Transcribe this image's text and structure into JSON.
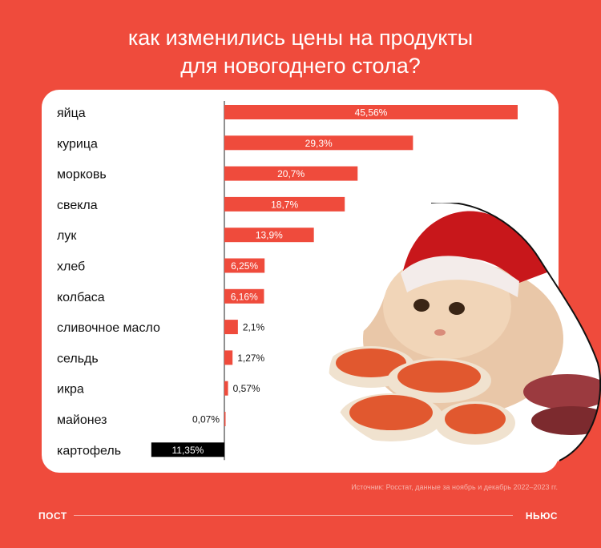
{
  "title": [
    "как изменились цены на продукты",
    "для новогоднего стола?"
  ],
  "source": "Источник: Росстат, данные за ноябрь и декабрь 2022–2023 гг.",
  "brand_left": "ПОСТ",
  "brand_right": "НЬЮС",
  "colors": {
    "background": "#ef4b3c",
    "bar_positive": "#ef4b3c",
    "bar_negative": "#000000",
    "card": "#ffffff"
  },
  "photo_icon": "cat-in-santa-hat-with-caviar-sandwiches",
  "chart_data": {
    "type": "bar",
    "orientation": "horizontal",
    "categories": [
      "яйца",
      "курица",
      "морковь",
      "свекла",
      "лук",
      "хлеб",
      "колбаса",
      "сливочное масло",
      "сельдь",
      "икра",
      "майонез",
      "картофель"
    ],
    "values": [
      45.56,
      29.3,
      20.7,
      18.7,
      13.9,
      6.25,
      6.16,
      2.1,
      1.27,
      0.57,
      0.07,
      -11.35
    ],
    "labels": [
      "45,56%",
      "29,3%",
      "20,7%",
      "18,7%",
      "13,9%",
      "6,25%",
      "6,16%",
      "2,1%",
      "1,27%",
      "0,57%",
      "0,07%",
      "11,35%"
    ],
    "xlim": [
      -11.35,
      45.56
    ],
    "grid": false,
    "legend": "none"
  }
}
